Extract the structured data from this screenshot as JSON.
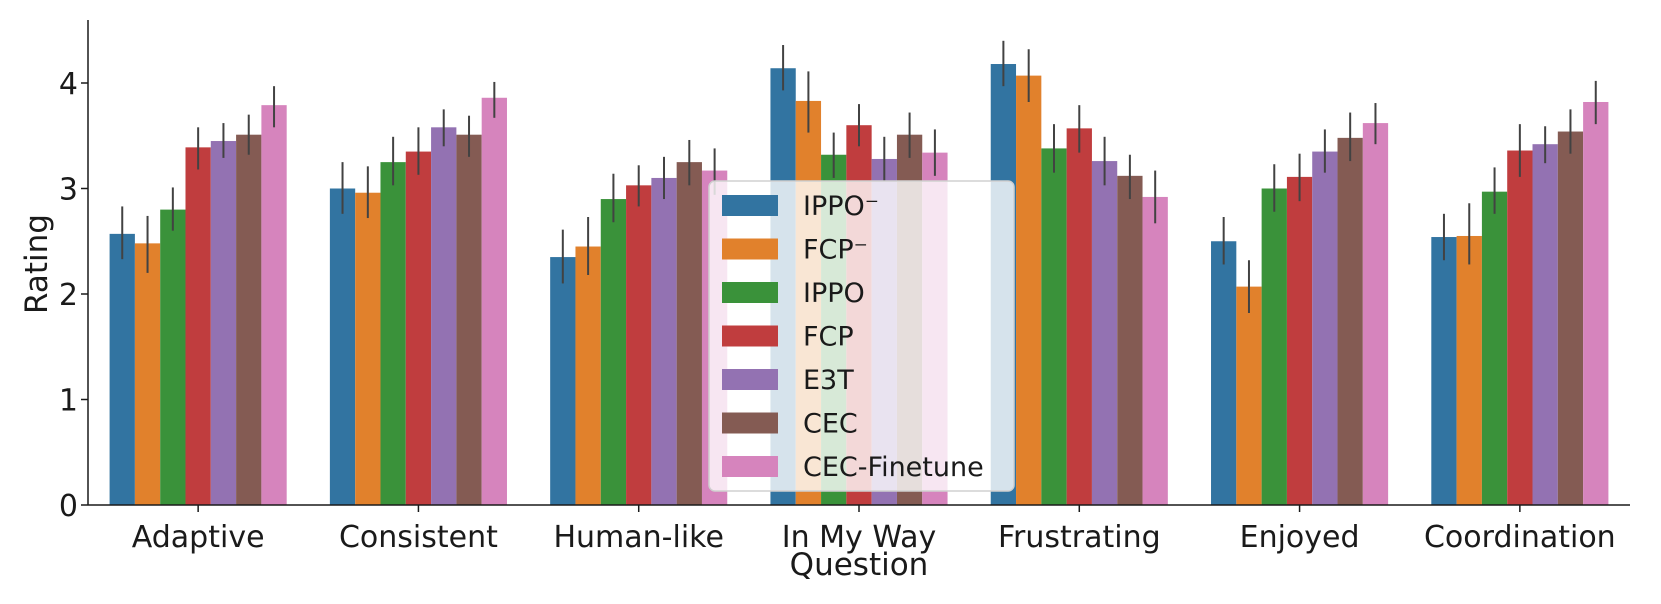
{
  "chart_data": {
    "type": "bar",
    "xlabel": "Question",
    "ylabel": "Rating",
    "ylim": [
      0,
      4.6
    ],
    "yticks": [
      "0",
      "1",
      "2",
      "3",
      "4"
    ],
    "grid": false,
    "legend_position": "center",
    "categories": [
      "Adaptive",
      "Consistent",
      "Human-like",
      "In My Way",
      "Frustrating",
      "Enjoyed",
      "Coordination"
    ],
    "series": [
      {
        "name": "IPPO⁻",
        "color": "#3274a1",
        "values": [
          2.57,
          3.0,
          2.35,
          4.14,
          4.18,
          2.5,
          2.54
        ],
        "err_low": [
          2.33,
          2.76,
          2.1,
          3.93,
          3.97,
          2.28,
          2.32
        ],
        "err_high": [
          2.83,
          3.25,
          2.61,
          4.36,
          4.4,
          2.73,
          2.76
        ]
      },
      {
        "name": "FCP⁻",
        "color": "#e1812c",
        "values": [
          2.48,
          2.96,
          2.45,
          3.83,
          4.07,
          2.07,
          2.55
        ],
        "err_low": [
          2.2,
          2.72,
          2.18,
          3.53,
          3.82,
          1.82,
          2.28
        ],
        "err_high": [
          2.74,
          3.21,
          2.73,
          4.11,
          4.32,
          2.32,
          2.86
        ]
      },
      {
        "name": "IPPO",
        "color": "#3a923a",
        "values": [
          2.8,
          3.25,
          2.9,
          3.32,
          3.38,
          3.0,
          2.97
        ],
        "err_low": [
          2.6,
          3.03,
          2.68,
          3.1,
          3.15,
          2.78,
          2.76
        ],
        "err_high": [
          3.01,
          3.49,
          3.14,
          3.53,
          3.61,
          3.23,
          3.2
        ]
      },
      {
        "name": "FCP",
        "color": "#c03d3e",
        "values": [
          3.39,
          3.35,
          3.03,
          3.6,
          3.57,
          3.11,
          3.36
        ],
        "err_low": [
          3.18,
          3.13,
          2.83,
          3.4,
          3.34,
          2.88,
          3.11
        ],
        "err_high": [
          3.58,
          3.58,
          3.22,
          3.8,
          3.79,
          3.33,
          3.61
        ]
      },
      {
        "name": "E3T",
        "color": "#9372b2",
        "values": [
          3.45,
          3.58,
          3.1,
          3.28,
          3.26,
          3.35,
          3.42
        ],
        "err_low": [
          3.29,
          3.4,
          2.9,
          3.07,
          3.03,
          3.15,
          3.24
        ],
        "err_high": [
          3.62,
          3.75,
          3.3,
          3.49,
          3.49,
          3.56,
          3.59
        ]
      },
      {
        "name": "CEC",
        "color": "#845b53",
        "values": [
          3.51,
          3.51,
          3.25,
          3.51,
          3.12,
          3.48,
          3.54
        ],
        "err_low": [
          3.32,
          3.3,
          3.03,
          3.29,
          2.9,
          3.26,
          3.33
        ],
        "err_high": [
          3.7,
          3.69,
          3.46,
          3.72,
          3.32,
          3.72,
          3.75
        ]
      },
      {
        "name": "CEC-Finetune",
        "color": "#d684bd",
        "values": [
          3.79,
          3.86,
          3.17,
          3.34,
          2.92,
          3.62,
          3.82
        ],
        "err_low": [
          3.58,
          3.67,
          2.94,
          3.12,
          2.67,
          3.42,
          3.61
        ],
        "err_high": [
          3.97,
          4.01,
          3.38,
          3.56,
          3.17,
          3.81,
          4.02
        ]
      }
    ]
  }
}
